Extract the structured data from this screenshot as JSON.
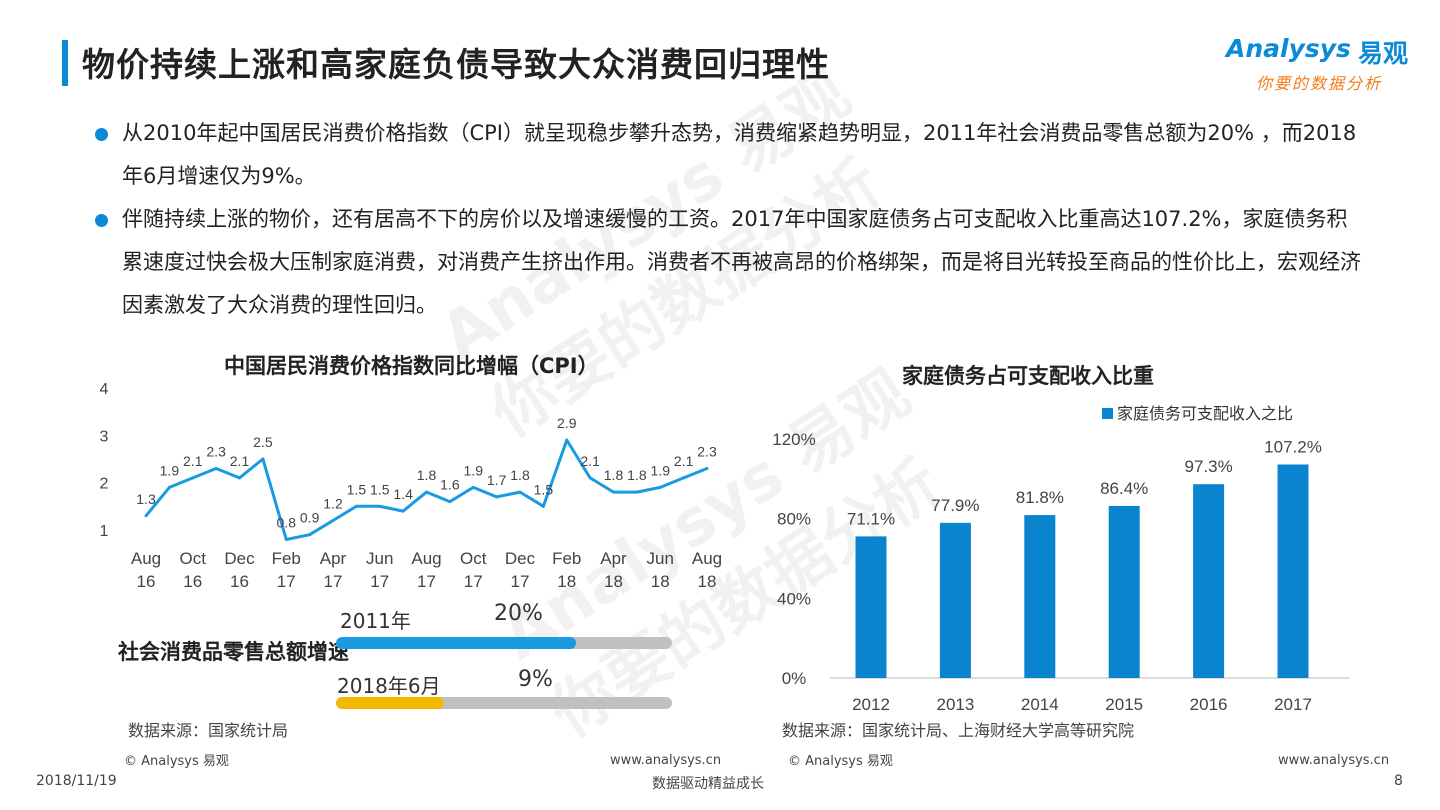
{
  "header": {
    "title": "物价持续上涨和高家庭负债导致大众消费回归理性",
    "logo_en": "Analysys",
    "logo_cn": "易观",
    "logo_tagline": "你要的数据分析"
  },
  "bullets": [
    "从2010年起中国居民消费价格指数（CPI）就呈现稳步攀升态势，消费缩紧趋势明显，2011年社会消费品零售总额为20% ，而2018年6月增速仅为9%。",
    "伴随持续上涨的物价，还有居高不下的房价以及增速缓慢的工资。2017年中国家庭债务占可支配收入比重高达107.2%，家庭债务积累速度过快会极大压制家庭消费，对消费产生挤出作用。消费者不再被高昂的价格绑架，而是将目光转投至商品的性价比上，宏观经济因素激发了大众消费的理性回归。"
  ],
  "chart_data": [
    {
      "type": "line",
      "title": "中国居民消费价格指数同比增幅（CPI）",
      "x": [
        "Aug 16",
        "Sep 16",
        "Oct 16",
        "Nov 16",
        "Dec 16",
        "Jan 17",
        "Feb 17",
        "Mar 17",
        "Apr 17",
        "May 17",
        "Jun 17",
        "Jul 17",
        "Aug 17",
        "Sep 17",
        "Oct 17",
        "Nov 17",
        "Dec 17",
        "Jan 18",
        "Feb 18",
        "Mar 18",
        "Apr 18",
        "May 18",
        "Jun 18",
        "Jul 18",
        "Aug 18"
      ],
      "x_tick_labels": [
        [
          "Aug",
          "16"
        ],
        [
          "Oct",
          "16"
        ],
        [
          "Dec",
          "16"
        ],
        [
          "Feb",
          "17"
        ],
        [
          "Apr",
          "17"
        ],
        [
          "Jun",
          "17"
        ],
        [
          "Aug",
          "17"
        ],
        [
          "Oct",
          "17"
        ],
        [
          "Dec",
          "17"
        ],
        [
          "Feb",
          "18"
        ],
        [
          "Apr",
          "18"
        ],
        [
          "Jun",
          "18"
        ],
        [
          "Aug",
          "18"
        ]
      ],
      "values": [
        1.3,
        1.9,
        2.1,
        2.3,
        2.1,
        2.5,
        0.8,
        0.9,
        1.2,
        1.5,
        1.5,
        1.4,
        1.8,
        1.6,
        1.9,
        1.7,
        1.8,
        1.5,
        2.9,
        2.1,
        1.8,
        1.8,
        1.9,
        2.1,
        2.3
      ],
      "data_labels": [
        "1.3",
        "1.9",
        "2.1",
        "2.3",
        "2.1",
        "2.5",
        "0.8",
        "0.9",
        "1.2",
        "1.5",
        "1.5",
        "1.4",
        "1.8",
        "1.6",
        "1.9",
        "1.7",
        "1.8",
        "1.5",
        "2.9",
        "2.1",
        "1.8",
        "1.8",
        "1.9",
        "2.1",
        "2.3"
      ],
      "yticks": [
        "1",
        "2",
        "3",
        "4"
      ],
      "ylim": [
        1,
        4
      ],
      "color": "#1a9ae0",
      "grid": false
    },
    {
      "type": "bar",
      "title": "社会消费品零售总额增速",
      "categories": [
        "2011年",
        "2018年6月"
      ],
      "values": [
        20,
        9
      ],
      "labels": [
        "20%",
        "9%"
      ],
      "colors": [
        "#1a9ae0",
        "#f5b800"
      ],
      "track_color": "#c0c0c0"
    },
    {
      "type": "bar",
      "title": "家庭债务占可支配收入比重",
      "categories": [
        "2012",
        "2013",
        "2014",
        "2015",
        "2016",
        "2017"
      ],
      "values": [
        71.1,
        77.9,
        81.8,
        86.4,
        97.3,
        107.2
      ],
      "data_labels": [
        "71.1%",
        "77.9%",
        "81.8%",
        "86.4%",
        "97.3%",
        "107.2%"
      ],
      "series": [
        {
          "name": "家庭债务可支配收入之比",
          "values": [
            71.1,
            77.9,
            81.8,
            86.4,
            97.3,
            107.2
          ]
        }
      ],
      "yticks": [
        "0%",
        "40%",
        "80%",
        "120%"
      ],
      "ylim": [
        0,
        120
      ],
      "legend": "top-right",
      "color": "#0b84d0",
      "grid": false
    }
  ],
  "sources": {
    "left": "数据来源：国家统计局",
    "right": "数据来源：国家统计局、上海财经大学高等研究院"
  },
  "footer": {
    "copyright_left": "© Analysys 易观",
    "url_left": "www.analysys.cn",
    "copyright_right": "© Analysys 易观",
    "url_right": "www.analysys.cn",
    "date": "2018/11/19",
    "slogan": "数据驱动精益成长",
    "page_number": "8"
  },
  "watermark": {
    "line1": "Analysys 易观",
    "line2": "你要的数据分析"
  }
}
